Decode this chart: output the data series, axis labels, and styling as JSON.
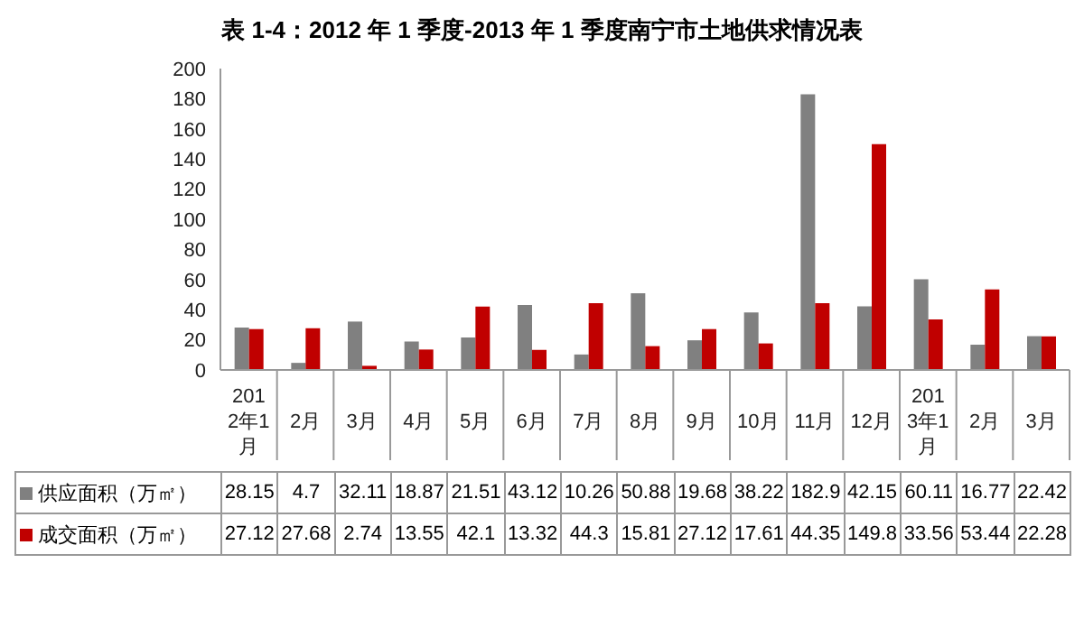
{
  "chart_data": {
    "type": "bar",
    "title": "表 1-4：2012 年 1 季度-2013 年 1 季度南宁市土地供求情况表",
    "categories": [
      "2012年1月",
      "2月",
      "3月",
      "4月",
      "5月",
      "6月",
      "7月",
      "8月",
      "9月",
      "10月",
      "11月",
      "12月",
      "2013年1月",
      "2月",
      "3月"
    ],
    "series": [
      {
        "name": "供应面积（万㎡）",
        "color": "#808080",
        "values": [
          28.15,
          4.7,
          32.11,
          18.87,
          21.51,
          43.12,
          10.26,
          50.88,
          19.68,
          38.22,
          182.9,
          42.15,
          60.11,
          16.77,
          22.42
        ]
      },
      {
        "name": "成交面积（万㎡）",
        "color": "#c00000",
        "values": [
          27.12,
          27.68,
          2.74,
          13.55,
          42.1,
          13.32,
          44.3,
          15.81,
          27.12,
          17.61,
          44.35,
          149.8,
          33.56,
          53.44,
          22.28
        ]
      }
    ],
    "ylim": [
      0,
      200
    ],
    "yticks": [
      0,
      20,
      40,
      60,
      80,
      100,
      120,
      140,
      160,
      180,
      200
    ],
    "grid": false,
    "legend": "bottom",
    "data_labels": true
  }
}
